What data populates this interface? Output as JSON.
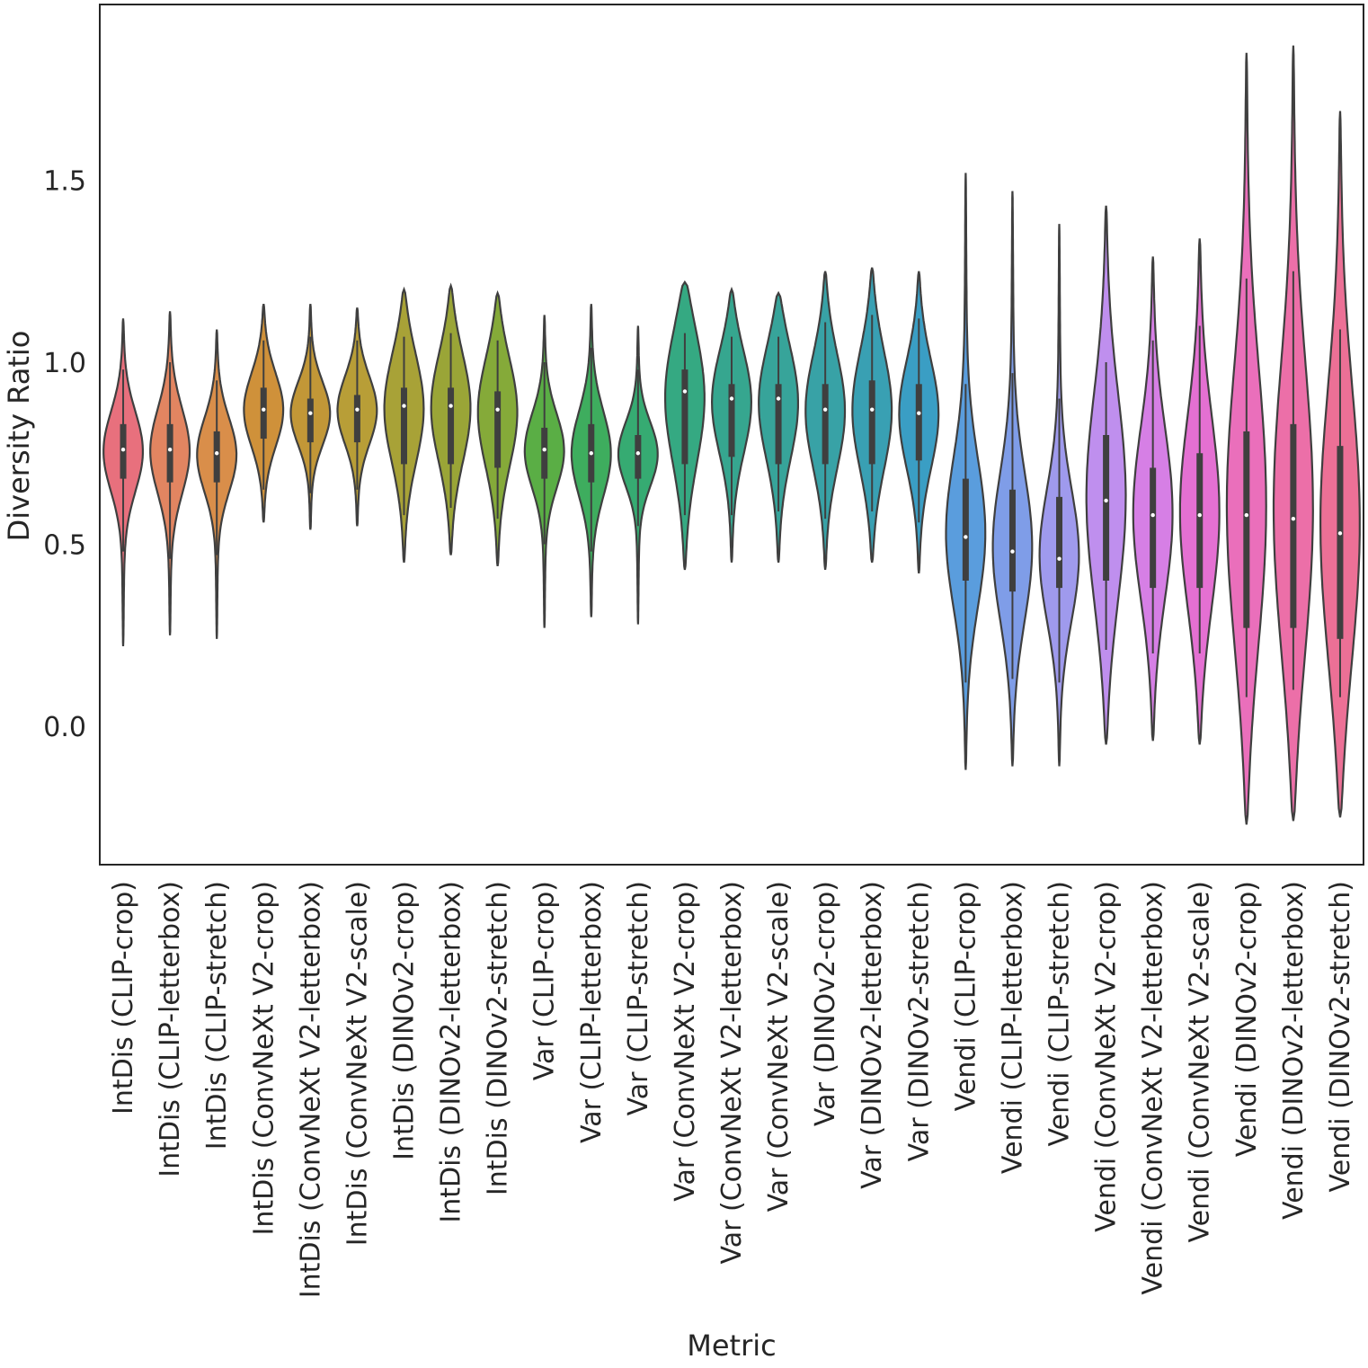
{
  "chart_data": {
    "type": "violin",
    "title": "",
    "xlabel": "Metric",
    "ylabel": "Diversity Ratio",
    "ylim": [
      -0.3,
      2.0
    ],
    "yticks": [
      "0.0",
      "0.5",
      "1.0",
      "1.5"
    ],
    "grid": false,
    "legend": "none",
    "categories": [
      {
        "label": "IntDis (CLIP-crop)",
        "color": "#e8707d",
        "min": 0.22,
        "q1": 0.68,
        "median": 0.76,
        "q3": 0.83,
        "max": 1.12,
        "wlo": 0.48,
        "whi": 0.98
      },
      {
        "label": "IntDis (CLIP-letterbox)",
        "color": "#e28561",
        "min": 0.25,
        "q1": 0.67,
        "median": 0.76,
        "q3": 0.83,
        "max": 1.14,
        "wlo": 0.46,
        "whi": 1.0
      },
      {
        "label": "IntDis (CLIP-stretch)",
        "color": "#d98e4a",
        "min": 0.24,
        "q1": 0.67,
        "median": 0.75,
        "q3": 0.81,
        "max": 1.09,
        "wlo": 0.47,
        "whi": 0.95
      },
      {
        "label": "IntDis (ConvNeXt V2-crop)",
        "color": "#cf913a",
        "min": 0.56,
        "q1": 0.79,
        "median": 0.87,
        "q3": 0.93,
        "max": 1.16,
        "wlo": 0.65,
        "whi": 1.06
      },
      {
        "label": "IntDis (ConvNeXt V2-letterbox)",
        "color": "#c29737",
        "min": 0.54,
        "q1": 0.78,
        "median": 0.86,
        "q3": 0.9,
        "max": 1.16,
        "wlo": 0.64,
        "whi": 1.07
      },
      {
        "label": "IntDis (ConvNeXt V2-scale)",
        "color": "#b89e37",
        "min": 0.55,
        "q1": 0.78,
        "median": 0.87,
        "q3": 0.91,
        "max": 1.15,
        "wlo": 0.65,
        "whi": 1.06
      },
      {
        "label": "IntDis (DINOv2-crop)",
        "color": "#a8a237",
        "min": 0.45,
        "q1": 0.72,
        "median": 0.88,
        "q3": 0.93,
        "max": 1.2,
        "wlo": 0.58,
        "whi": 1.07
      },
      {
        "label": "IntDis (DINOv2-letterbox)",
        "color": "#9aa537",
        "min": 0.47,
        "q1": 0.72,
        "median": 0.88,
        "q3": 0.93,
        "max": 1.21,
        "wlo": 0.6,
        "whi": 1.08
      },
      {
        "label": "IntDis (DINOv2-stretch)",
        "color": "#85aa39",
        "min": 0.44,
        "q1": 0.71,
        "median": 0.87,
        "q3": 0.92,
        "max": 1.19,
        "wlo": 0.57,
        "whi": 1.06
      },
      {
        "label": "Var (CLIP-crop)",
        "color": "#5aae45",
        "min": 0.27,
        "q1": 0.68,
        "median": 0.76,
        "q3": 0.82,
        "max": 1.13,
        "wlo": 0.5,
        "whi": 1.0
      },
      {
        "label": "Var (CLIP-letterbox)",
        "color": "#3ead5e",
        "min": 0.3,
        "q1": 0.67,
        "median": 0.75,
        "q3": 0.83,
        "max": 1.16,
        "wlo": 0.48,
        "whi": 1.04
      },
      {
        "label": "Var (CLIP-stretch)",
        "color": "#36ab72",
        "min": 0.28,
        "q1": 0.68,
        "median": 0.75,
        "q3": 0.8,
        "max": 1.1,
        "wlo": 0.55,
        "whi": 0.98
      },
      {
        "label": "Var (ConvNeXt V2-crop)",
        "color": "#35a982",
        "min": 0.43,
        "q1": 0.72,
        "median": 0.92,
        "q3": 0.98,
        "max": 1.22,
        "wlo": 0.58,
        "whi": 1.08
      },
      {
        "label": "Var (ConvNeXt V2-letterbox)",
        "color": "#36a68f",
        "min": 0.45,
        "q1": 0.74,
        "median": 0.9,
        "q3": 0.94,
        "max": 1.2,
        "wlo": 0.58,
        "whi": 1.07
      },
      {
        "label": "Var (ConvNeXt V2-scale)",
        "color": "#37a49a",
        "min": 0.45,
        "q1": 0.72,
        "median": 0.9,
        "q3": 0.94,
        "max": 1.19,
        "wlo": 0.59,
        "whi": 1.07
      },
      {
        "label": "Var (DINOv2-crop)",
        "color": "#38a2a6",
        "min": 0.43,
        "q1": 0.72,
        "median": 0.87,
        "q3": 0.94,
        "max": 1.25,
        "wlo": 0.57,
        "whi": 1.11
      },
      {
        "label": "Var (DINOv2-letterbox)",
        "color": "#39a0b3",
        "min": 0.45,
        "q1": 0.72,
        "median": 0.87,
        "q3": 0.95,
        "max": 1.26,
        "wlo": 0.59,
        "whi": 1.13
      },
      {
        "label": "Var (DINOv2-stretch)",
        "color": "#3a9ec4",
        "min": 0.42,
        "q1": 0.73,
        "median": 0.86,
        "q3": 0.94,
        "max": 1.25,
        "wlo": 0.56,
        "whi": 1.12
      },
      {
        "label": "Vendi (CLIP-crop)",
        "color": "#5a9ddd",
        "min": -0.12,
        "q1": 0.4,
        "median": 0.52,
        "q3": 0.68,
        "max": 1.52,
        "wlo": 0.12,
        "whi": 0.94
      },
      {
        "label": "Vendi (CLIP-letterbox)",
        "color": "#7f9de8",
        "min": -0.11,
        "q1": 0.37,
        "median": 0.48,
        "q3": 0.65,
        "max": 1.47,
        "wlo": 0.13,
        "whi": 0.97
      },
      {
        "label": "Vendi (CLIP-stretch)",
        "color": "#9f9aed",
        "min": -0.11,
        "q1": 0.38,
        "median": 0.46,
        "q3": 0.63,
        "max": 1.38,
        "wlo": 0.12,
        "whi": 0.9
      },
      {
        "label": "Vendi (ConvNeXt V2-crop)",
        "color": "#bf8fee",
        "min": -0.05,
        "q1": 0.4,
        "median": 0.62,
        "q3": 0.8,
        "max": 1.43,
        "wlo": 0.21,
        "whi": 1.0
      },
      {
        "label": "Vendi (ConvNeXt V2-letterbox)",
        "color": "#d67fe5",
        "min": -0.04,
        "q1": 0.38,
        "median": 0.58,
        "q3": 0.71,
        "max": 1.29,
        "wlo": 0.2,
        "whi": 1.06
      },
      {
        "label": "Vendi (ConvNeXt V2-scale)",
        "color": "#e470d2",
        "min": -0.05,
        "q1": 0.38,
        "median": 0.58,
        "q3": 0.75,
        "max": 1.34,
        "wlo": 0.2,
        "whi": 1.1
      },
      {
        "label": "Vendi (DINOv2-crop)",
        "color": "#ea6fbb",
        "min": -0.27,
        "q1": 0.27,
        "median": 0.58,
        "q3": 0.81,
        "max": 1.85,
        "wlo": 0.08,
        "whi": 1.23
      },
      {
        "label": "Vendi (DINOv2-letterbox)",
        "color": "#ec6fa8",
        "min": -0.26,
        "q1": 0.27,
        "median": 0.57,
        "q3": 0.83,
        "max": 1.87,
        "wlo": 0.1,
        "whi": 1.25
      },
      {
        "label": "Vendi (DINOv2-stretch)",
        "color": "#ec7096",
        "min": -0.25,
        "q1": 0.24,
        "median": 0.53,
        "q3": 0.77,
        "max": 1.69,
        "wlo": 0.08,
        "whi": 1.09
      }
    ]
  }
}
